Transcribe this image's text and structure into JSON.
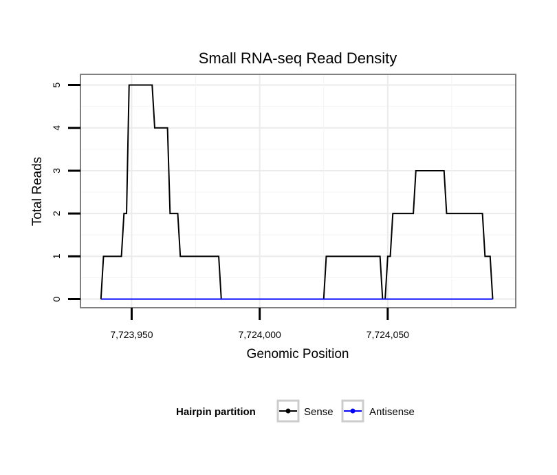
{
  "chart_data": {
    "type": "line",
    "title": "Small RNA-seq Read Density",
    "xlabel": "Genomic Position",
    "ylabel": "Total Reads",
    "xlim": [
      7723930,
      7724100
    ],
    "ylim": [
      -0.2,
      5.25
    ],
    "x_ticks": [
      7723950,
      7724000,
      7724050
    ],
    "x_tick_labels": [
      "7,723,950",
      "7,724,000",
      "7,724,050"
    ],
    "y_ticks": [
      0,
      1,
      2,
      3,
      4,
      5
    ],
    "y_tick_labels": [
      "0",
      "1",
      "2",
      "3",
      "4",
      "5"
    ],
    "grid": true,
    "legend": {
      "position": "bottom",
      "title": "Hairpin partition"
    },
    "series": [
      {
        "name": "Sense",
        "color": "#000000",
        "points": [
          [
            7723938,
            0
          ],
          [
            7723939,
            1
          ],
          [
            7723946,
            1
          ],
          [
            7723947,
            2
          ],
          [
            7723948,
            2
          ],
          [
            7723949,
            5
          ],
          [
            7723958,
            5
          ],
          [
            7723959,
            4
          ],
          [
            7723964,
            4
          ],
          [
            7723965,
            2
          ],
          [
            7723968,
            2
          ],
          [
            7723969,
            1
          ],
          [
            7723984,
            1
          ],
          [
            7723985,
            0
          ],
          [
            7724025,
            0
          ],
          [
            7724026,
            1
          ],
          [
            7724047,
            1
          ],
          [
            7724048,
            0
          ],
          [
            7724049,
            0
          ],
          [
            7724050,
            1
          ],
          [
            7724051,
            1
          ],
          [
            7724052,
            2
          ],
          [
            7724060,
            2
          ],
          [
            7724061,
            3
          ],
          [
            7724072,
            3
          ],
          [
            7724073,
            2
          ],
          [
            7724087,
            2
          ],
          [
            7724088,
            1
          ],
          [
            7724090,
            1
          ],
          [
            7724091,
            0
          ]
        ]
      },
      {
        "name": "Antisense",
        "color": "#0000ff",
        "points": [
          [
            7723938,
            0
          ],
          [
            7724091,
            0
          ]
        ]
      }
    ]
  }
}
